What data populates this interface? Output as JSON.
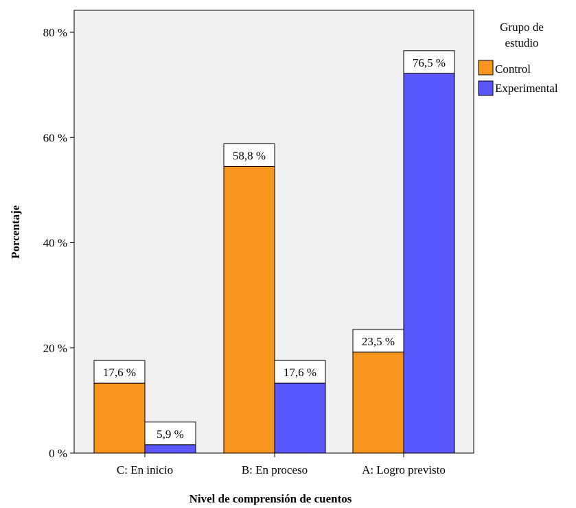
{
  "chart_data": {
    "type": "bar",
    "categories": [
      "C: En inicio",
      "B: En proceso",
      "A: Logro previsto"
    ],
    "series": [
      {
        "name": "Control",
        "values": [
          17.6,
          58.8,
          23.5
        ],
        "labels": [
          "17,6 %",
          "58,8 %",
          "23,5 %"
        ],
        "color": "#F7951E"
      },
      {
        "name": "Experimental",
        "values": [
          5.9,
          17.6,
          76.5
        ],
        "labels": [
          "5,9 %",
          "17,6 %",
          "76,5 %"
        ],
        "color": "#5A57FF"
      }
    ],
    "title": "",
    "xlabel": "Nivel de comprensión de cuentos",
    "ylabel": "Porcentaje",
    "ylim": [
      0,
      80
    ],
    "yticks": [
      0,
      20,
      40,
      60,
      80
    ],
    "ytick_labels": [
      "0 %",
      "20 %",
      "40 %",
      "60 %",
      "80 %"
    ],
    "legend": {
      "title": "Grupo de estudio",
      "title_lines": [
        "Grupo de",
        "estudio"
      ],
      "placement": "right"
    },
    "plot_background": "#F0F0F0",
    "grid": false
  }
}
